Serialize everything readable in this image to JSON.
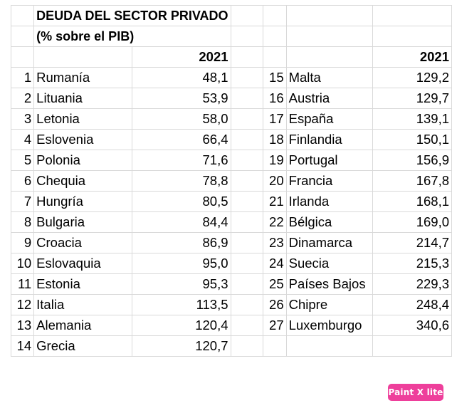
{
  "header": {
    "title_line1": "DEUDA DEL SECTOR PRIVADO",
    "title_line2": "(% sobre el PIB)",
    "year_left": "2021",
    "year_right": "2021"
  },
  "left_rows": [
    {
      "rank": "1",
      "country": "Rumanía",
      "value": "48,1"
    },
    {
      "rank": "2",
      "country": "Lituania",
      "value": "53,9"
    },
    {
      "rank": "3",
      "country": "Letonia",
      "value": "58,0"
    },
    {
      "rank": "4",
      "country": "Eslovenia",
      "value": "66,4"
    },
    {
      "rank": "5",
      "country": "Polonia",
      "value": "71,6"
    },
    {
      "rank": "6",
      "country": "Chequia",
      "value": "78,8"
    },
    {
      "rank": "7",
      "country": "Hungría",
      "value": "80,5"
    },
    {
      "rank": "8",
      "country": "Bulgaria",
      "value": "84,4"
    },
    {
      "rank": "9",
      "country": "Croacia",
      "value": "86,9"
    },
    {
      "rank": "10",
      "country": "Eslovaquia",
      "value": "95,0"
    },
    {
      "rank": "11",
      "country": "Estonia",
      "value": "95,3"
    },
    {
      "rank": "12",
      "country": "Italia",
      "value": "113,5"
    },
    {
      "rank": "13",
      "country": "Alemania",
      "value": "120,4"
    },
    {
      "rank": "14",
      "country": "Grecia",
      "value": "120,7"
    }
  ],
  "right_rows": [
    {
      "rank": "15",
      "country": "Malta",
      "value": "129,2"
    },
    {
      "rank": "16",
      "country": "Austria",
      "value": "129,7"
    },
    {
      "rank": "17",
      "country": "España",
      "value": "139,1"
    },
    {
      "rank": "18",
      "country": "Finlandia",
      "value": "150,1"
    },
    {
      "rank": "19",
      "country": "Portugal",
      "value": "156,9"
    },
    {
      "rank": "20",
      "country": "Francia",
      "value": "167,8"
    },
    {
      "rank": "21",
      "country": "Irlanda",
      "value": "168,1"
    },
    {
      "rank": "22",
      "country": "Bélgica",
      "value": "169,0"
    },
    {
      "rank": "23",
      "country": "Dinamarca",
      "value": "214,7"
    },
    {
      "rank": "24",
      "country": "Suecia",
      "value": "215,3"
    },
    {
      "rank": "25",
      "country": "Países Bajos",
      "value": "229,3"
    },
    {
      "rank": "26",
      "country": "Chipre",
      "value": "248,4"
    },
    {
      "rank": "27",
      "country": "Luxemburgo",
      "value": "340,6"
    }
  ],
  "watermark": {
    "label": "Paint X lite",
    "color": "#ee3f9b"
  }
}
